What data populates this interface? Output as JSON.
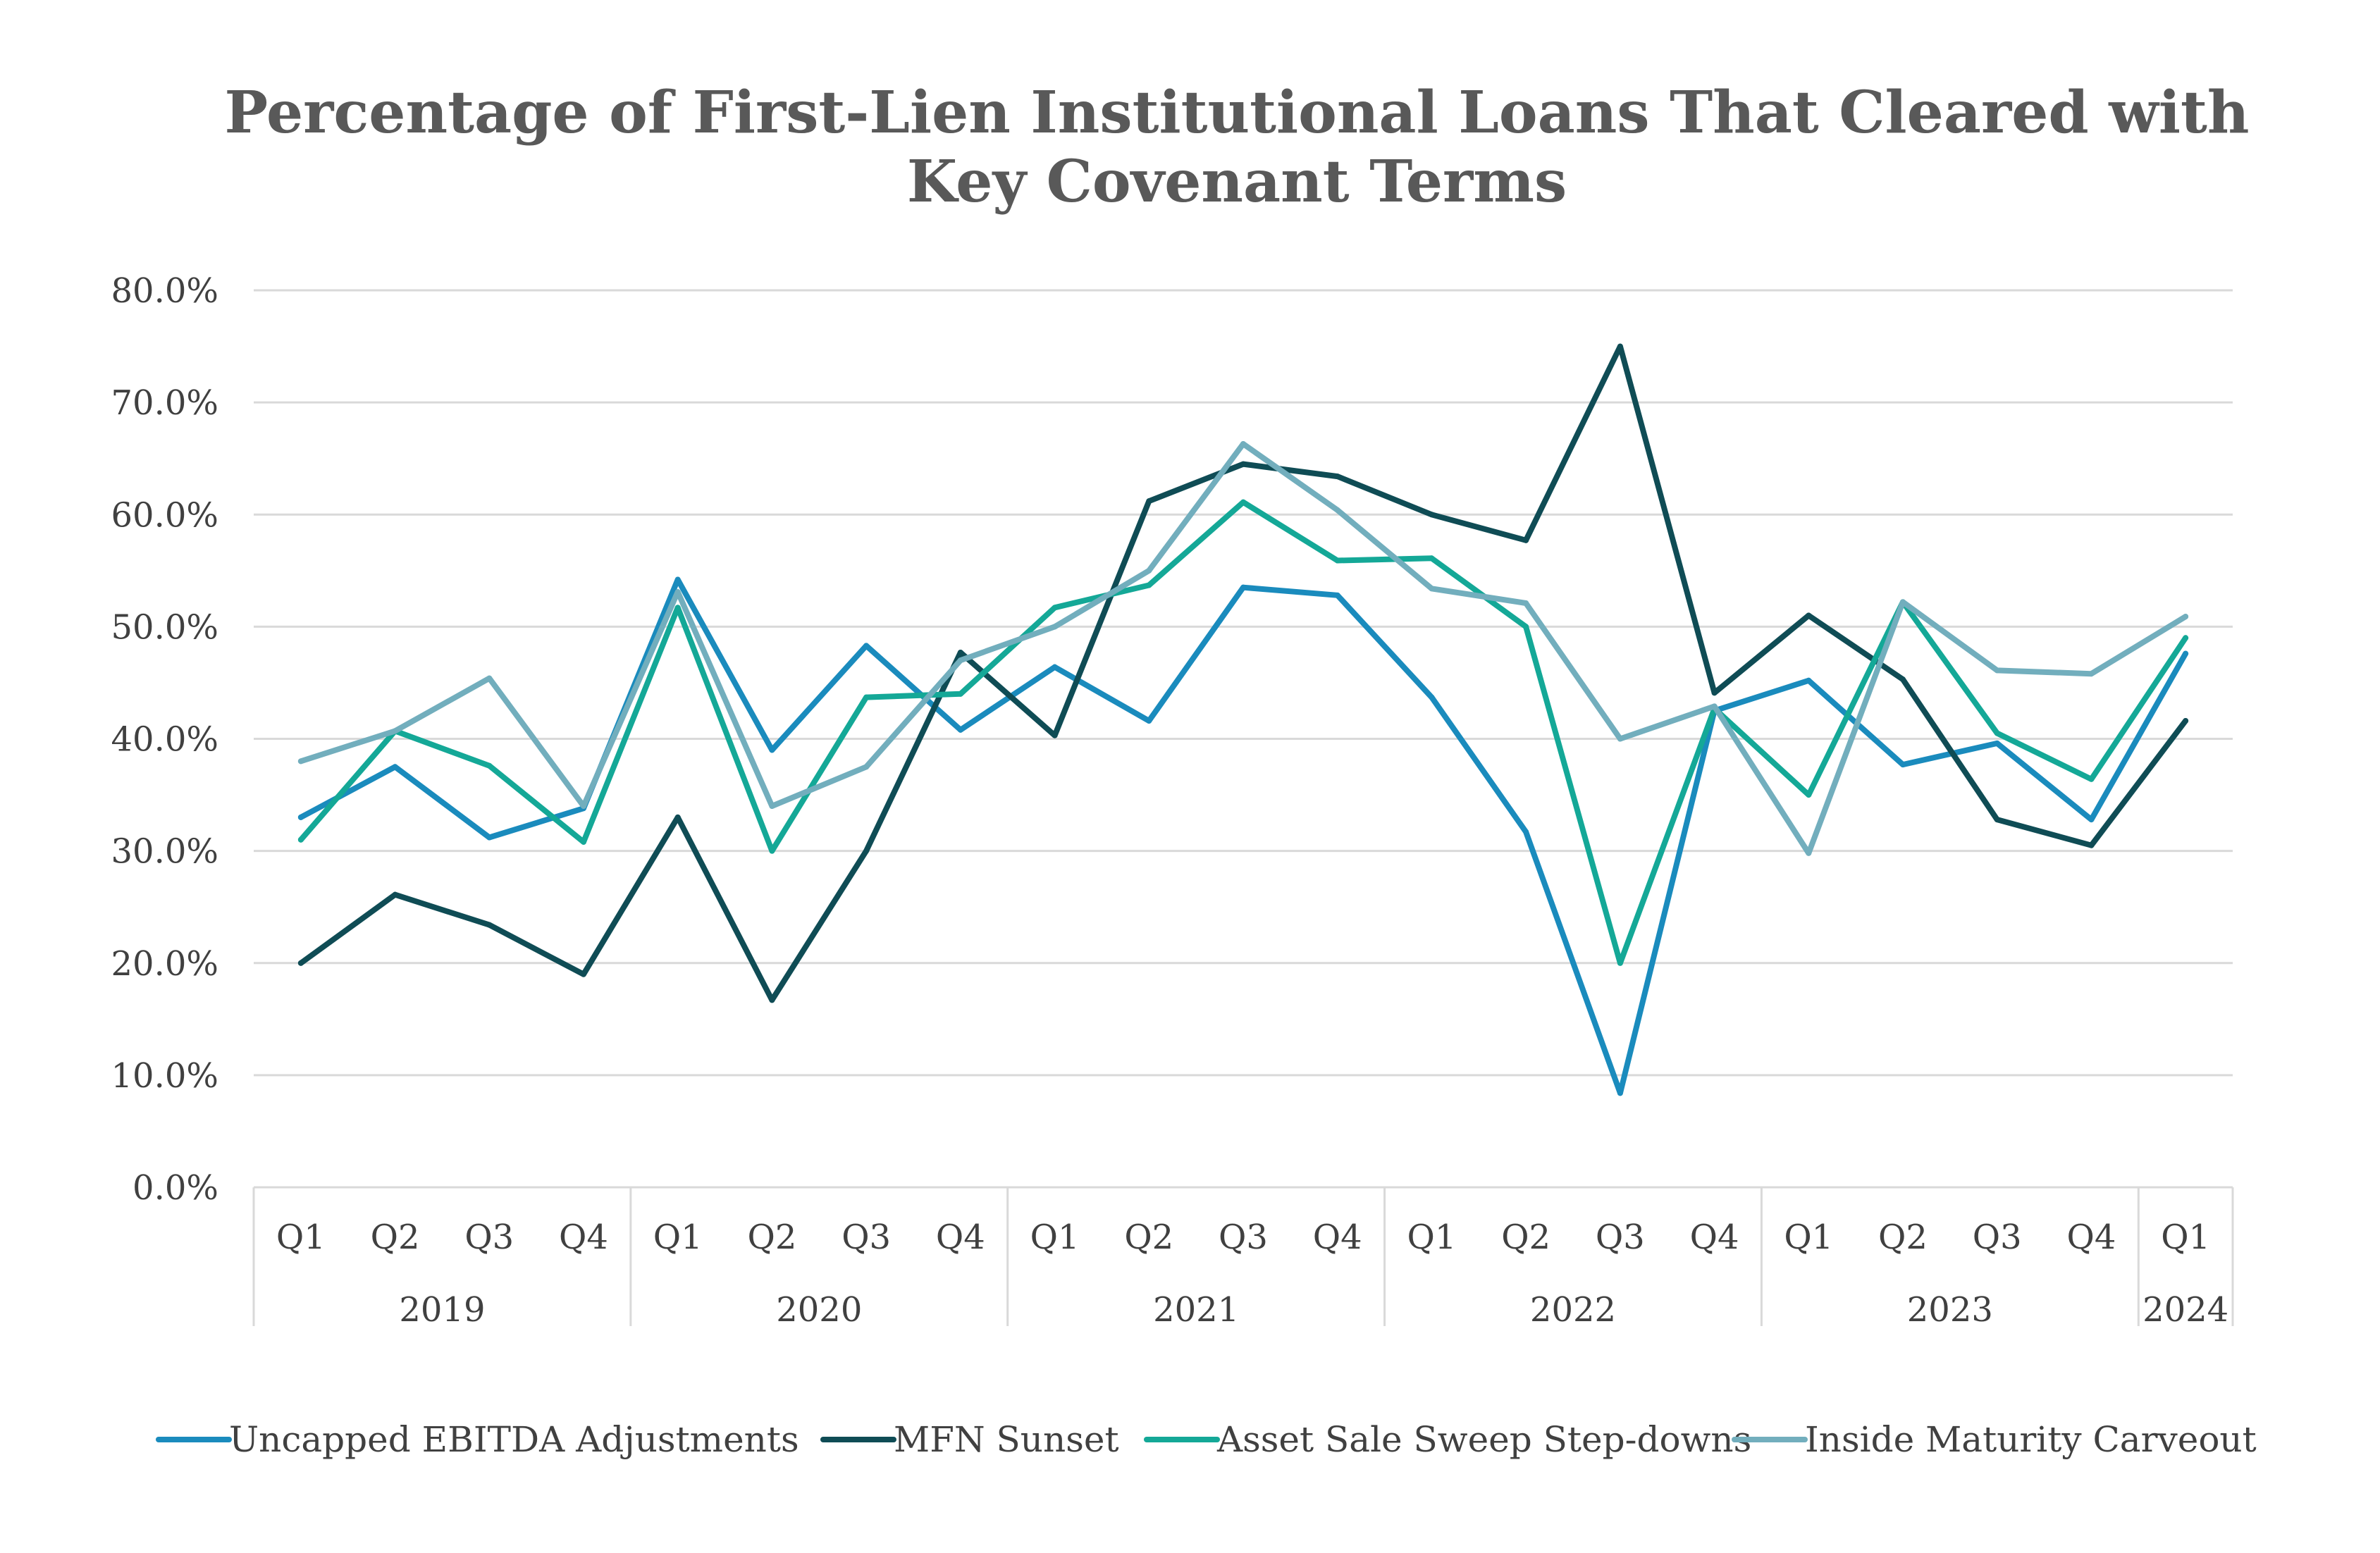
{
  "chart_data": {
    "type": "line",
    "title": "Percentage of First-Lien Institutional Loans That Cleared with Key Covenant Terms",
    "title_lines": [
      "Percentage of First-Lien Institutional Loans That Cleared with",
      "Key Covenant Terms"
    ],
    "xlabel": "",
    "ylabel": "",
    "ylim": [
      0,
      80
    ],
    "yticks": [
      "0.0%",
      "10.0%",
      "20.0%",
      "30.0%",
      "40.0%",
      "50.0%",
      "60.0%",
      "70.0%",
      "80.0%"
    ],
    "ytick_values": [
      0,
      10,
      20,
      30,
      40,
      50,
      60,
      70,
      80
    ],
    "grid": true,
    "legend_position": "bottom",
    "categories": [
      "Q1",
      "Q2",
      "Q3",
      "Q4",
      "Q1",
      "Q2",
      "Q3",
      "Q4",
      "Q1",
      "Q2",
      "Q3",
      "Q4",
      "Q1",
      "Q2",
      "Q3",
      "Q4",
      "Q1",
      "Q2",
      "Q3",
      "Q4",
      "Q1"
    ],
    "year_groups": [
      {
        "label": "2019",
        "start": 0,
        "count": 4
      },
      {
        "label": "2020",
        "start": 4,
        "count": 4
      },
      {
        "label": "2021",
        "start": 8,
        "count": 4
      },
      {
        "label": "2022",
        "start": 12,
        "count": 4
      },
      {
        "label": "2023",
        "start": 16,
        "count": 4
      },
      {
        "label": "2024",
        "start": 20,
        "count": 1
      }
    ],
    "series": [
      {
        "name": "Uncapped EBITDA Adjustments",
        "color": "#1a8bbd",
        "values": [
          33.0,
          37.5,
          31.2,
          33.8,
          54.2,
          39.0,
          48.3,
          40.8,
          46.4,
          41.6,
          53.5,
          52.8,
          43.7,
          31.7,
          8.4,
          42.5,
          45.2,
          37.7,
          39.6,
          32.8,
          47.6
        ]
      },
      {
        "name": "MFN Sunset",
        "color": "#0f4c55",
        "values": [
          20.0,
          26.1,
          23.4,
          19.0,
          33.0,
          16.7,
          30.0,
          47.7,
          40.3,
          61.2,
          64.5,
          63.4,
          60.0,
          57.7,
          75.0,
          44.1,
          51.0,
          45.3,
          32.8,
          30.5,
          41.6
        ]
      },
      {
        "name": "Asset Sale Sweep Step-downs",
        "color": "#14a897",
        "values": [
          31.0,
          40.7,
          37.6,
          30.8,
          51.7,
          30.0,
          43.7,
          44.0,
          51.7,
          53.7,
          61.1,
          55.9,
          56.1,
          50.0,
          20.0,
          42.7,
          35.0,
          52.2,
          40.5,
          36.4,
          49.0
        ]
      },
      {
        "name": "Inside Maturity Carveout",
        "color": "#72aebd",
        "values": [
          38.0,
          40.7,
          45.4,
          34.0,
          53.1,
          34.0,
          37.5,
          47.0,
          50.0,
          55.0,
          66.3,
          60.4,
          53.4,
          52.1,
          40.0,
          42.9,
          29.8,
          52.2,
          46.1,
          45.8,
          50.9
        ]
      }
    ]
  }
}
